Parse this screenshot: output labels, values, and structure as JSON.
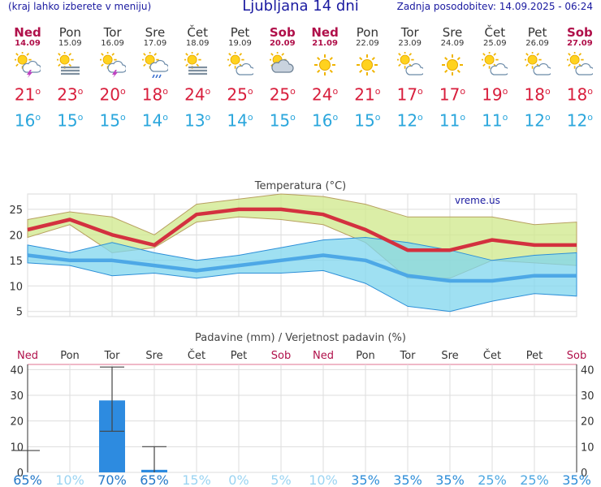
{
  "header": {
    "hint": "(kraj lahko izberete v meniju)",
    "title": "Ljubljana 14 dni",
    "updated": "Zadnja posodobitev: 14.09.2025 - 06:24"
  },
  "degree_mark": "o",
  "days": [
    {
      "name": "Ned",
      "date": "14.09",
      "weekend": true,
      "icon": "sun-cloud-thunder-icon",
      "tmax": "21",
      "tmin": "16"
    },
    {
      "name": "Pon",
      "date": "15.09",
      "weekend": false,
      "icon": "sun-fog-icon",
      "tmax": "23",
      "tmin": "15"
    },
    {
      "name": "Tor",
      "date": "16.09",
      "weekend": false,
      "icon": "sun-cloud-thunder-icon",
      "tmax": "20",
      "tmin": "15"
    },
    {
      "name": "Sre",
      "date": "17.09",
      "weekend": false,
      "icon": "sun-cloud-rain-icon",
      "tmax": "18",
      "tmin": "14"
    },
    {
      "name": "Čet",
      "date": "18.09",
      "weekend": false,
      "icon": "sun-fog-icon",
      "tmax": "24",
      "tmin": "13"
    },
    {
      "name": "Pet",
      "date": "19.09",
      "weekend": false,
      "icon": "sun-cloud-icon",
      "tmax": "25",
      "tmin": "14"
    },
    {
      "name": "Sob",
      "date": "20.09",
      "weekend": true,
      "icon": "cloud-sun-icon",
      "tmax": "25",
      "tmin": "15"
    },
    {
      "name": "Ned",
      "date": "21.09",
      "weekend": true,
      "icon": "sun-icon",
      "tmax": "24",
      "tmin": "16"
    },
    {
      "name": "Pon",
      "date": "22.09",
      "weekend": false,
      "icon": "sun-icon",
      "tmax": "21",
      "tmin": "15"
    },
    {
      "name": "Tor",
      "date": "23.09",
      "weekend": false,
      "icon": "sun-cloud-icon",
      "tmax": "17",
      "tmin": "12"
    },
    {
      "name": "Sre",
      "date": "24.09",
      "weekend": false,
      "icon": "sun-icon",
      "tmax": "17",
      "tmin": "11"
    },
    {
      "name": "Čet",
      "date": "25.09",
      "weekend": false,
      "icon": "sun-cloud-icon",
      "tmax": "19",
      "tmin": "11"
    },
    {
      "name": "Pet",
      "date": "26.09",
      "weekend": false,
      "icon": "sun-cloud-icon",
      "tmax": "18",
      "tmin": "12"
    },
    {
      "name": "Sob",
      "date": "27.09",
      "weekend": true,
      "icon": "sun-cloud-icon",
      "tmax": "18",
      "tmin": "12"
    }
  ],
  "chart_data": [
    {
      "type": "line",
      "title": "Temperatura (°C)",
      "watermark": "vreme.us",
      "ylim": [
        4,
        28
      ],
      "yticks": [
        5,
        10,
        15,
        20,
        25
      ],
      "grid": true,
      "series": [
        {
          "role": "max-band-upper",
          "values": [
            23,
            24.5,
            23.5,
            20,
            26,
            27,
            28,
            27.5,
            26,
            23.5,
            23.5,
            23.5,
            22,
            22.5
          ]
        },
        {
          "role": "max-band-lower",
          "values": [
            19.5,
            22,
            16.5,
            17.5,
            22.5,
            23.5,
            23,
            22,
            18.5,
            11.5,
            11.5,
            15,
            14.5,
            14
          ]
        },
        {
          "role": "min-band-upper",
          "values": [
            18,
            16.5,
            18.5,
            16.5,
            15,
            16,
            17.5,
            19,
            19.5,
            18.5,
            17,
            15,
            16,
            16.5
          ]
        },
        {
          "role": "min-band-lower",
          "values": [
            14.5,
            14,
            12,
            12.5,
            11.5,
            12.5,
            12.5,
            13,
            10.5,
            6,
            5,
            7,
            8.5,
            8
          ]
        },
        {
          "role": "max",
          "color": "#d3313f",
          "values": [
            21,
            23,
            20,
            18,
            24,
            25,
            25,
            24,
            21,
            17,
            17,
            19,
            18,
            18
          ]
        },
        {
          "role": "min",
          "color": "#4da8e6",
          "values": [
            16,
            15,
            15,
            14,
            13,
            14,
            15,
            16,
            15,
            12,
            11,
            11,
            12,
            12
          ]
        }
      ]
    },
    {
      "type": "bar",
      "title": "Padavine (mm) / Verjetnost padavin (%)",
      "categories": [
        "Ned",
        "Pon",
        "Tor",
        "Sre",
        "Čet",
        "Pet",
        "Sob",
        "Ned",
        "Pon",
        "Tor",
        "Sre",
        "Čet",
        "Pet",
        "Sob"
      ],
      "weekend": [
        true,
        false,
        false,
        false,
        false,
        false,
        true,
        true,
        false,
        false,
        false,
        false,
        false,
        true
      ],
      "ylim": [
        0,
        42
      ],
      "yticks": [
        0,
        10,
        20,
        30,
        40
      ],
      "values": [
        0,
        0,
        28,
        1,
        0,
        0,
        0,
        0,
        0,
        0,
        0,
        0,
        0,
        0
      ],
      "errors": [
        [
          0,
          8.5
        ],
        null,
        [
          16,
          41
        ],
        [
          0,
          10
        ],
        null,
        null,
        null,
        null,
        null,
        null,
        null,
        null,
        null,
        null
      ],
      "probability": [
        "65%",
        "10%",
        "70%",
        "65%",
        "15%",
        "0%",
        "5%",
        "10%",
        "35%",
        "35%",
        "35%",
        "25%",
        "25%",
        "35%"
      ],
      "probability_color": [
        "#2478c8",
        "#9bd4f2",
        "#2478c8",
        "#2478c8",
        "#9bd4f2",
        "#9bd4f2",
        "#9bd4f2",
        "#9bd4f2",
        "#2f8ed8",
        "#2f8ed8",
        "#2f8ed8",
        "#4ea8e2",
        "#4ea8e2",
        "#2f8ed8"
      ],
      "bar_color": "#2d8be0"
    }
  ]
}
